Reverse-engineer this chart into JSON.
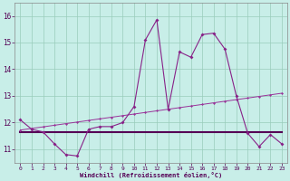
{
  "x": [
    0,
    1,
    2,
    3,
    4,
    5,
    6,
    7,
    8,
    9,
    10,
    11,
    12,
    13,
    14,
    15,
    16,
    17,
    18,
    19,
    20,
    21,
    22,
    23
  ],
  "y_main": [
    12.1,
    11.75,
    11.65,
    11.2,
    10.8,
    10.75,
    11.75,
    11.85,
    11.85,
    12.0,
    12.6,
    15.1,
    15.85,
    12.5,
    14.65,
    14.45,
    15.3,
    15.35,
    14.75,
    13.0,
    11.6,
    11.1,
    11.55,
    11.2
  ],
  "y_trend": [
    11.72,
    11.78,
    11.84,
    11.9,
    11.96,
    12.02,
    12.08,
    12.14,
    12.2,
    12.26,
    12.32,
    12.38,
    12.44,
    12.5,
    12.56,
    12.62,
    12.68,
    12.74,
    12.8,
    12.86,
    12.92,
    12.98,
    13.04,
    13.1
  ],
  "y_flat": [
    11.65,
    11.65,
    11.65,
    11.65,
    11.65,
    11.65,
    11.65,
    11.65,
    11.65,
    11.65,
    11.65,
    11.65,
    11.65,
    11.65,
    11.65,
    11.65,
    11.65,
    11.65,
    11.65,
    11.65,
    11.65,
    11.65,
    11.65,
    11.65
  ],
  "main_color": "#882288",
  "trend_color": "#993399",
  "flat_color": "#550055",
  "bg_color": "#c8eee8",
  "grid_color": "#99ccbb",
  "xlabel": "Windchill (Refroidissement éolien,°C)",
  "ylim": [
    10.5,
    16.5
  ],
  "xlim": [
    -0.5,
    23.5
  ],
  "yticks": [
    11,
    12,
    13,
    14,
    15,
    16
  ],
  "xticks": [
    0,
    1,
    2,
    3,
    4,
    5,
    6,
    7,
    8,
    9,
    10,
    11,
    12,
    13,
    14,
    15,
    16,
    17,
    18,
    19,
    20,
    21,
    22,
    23
  ]
}
